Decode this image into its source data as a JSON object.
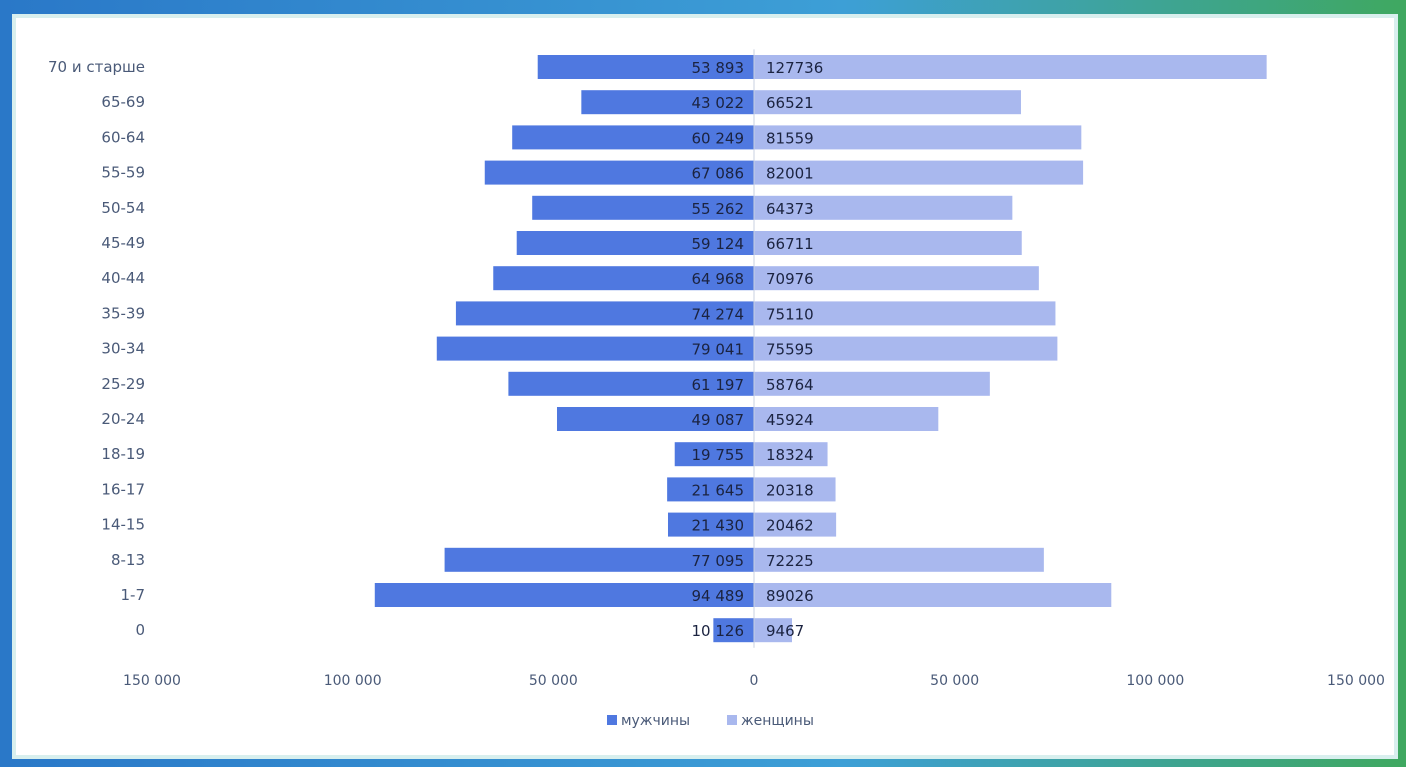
{
  "chart_data": {
    "type": "bar",
    "orientation": "horizontal",
    "categories": [
      "70 и старше",
      "65-69",
      "60-64",
      "55-59",
      "50-54",
      "45-49",
      "40-44",
      "35-39",
      "30-34",
      "25-29",
      "20-24",
      "18-19",
      "16-17",
      "14-15",
      "8-13",
      "1-7",
      "0"
    ],
    "series": [
      {
        "name": "мужчины",
        "color": "#4f78e0",
        "values": [
          53893,
          43022,
          60249,
          67086,
          55262,
          59124,
          64968,
          74274,
          79041,
          61197,
          49087,
          19755,
          21645,
          21430,
          77095,
          94489,
          10126
        ],
        "labels": [
          "53 893",
          "43 022",
          "60 249",
          "67 086",
          "55 262",
          "59 124",
          "64 968",
          "74 274",
          "79 041",
          "61 197",
          "49 087",
          "19 755",
          "21 645",
          "21 430",
          "77 095",
          "94 489",
          "10 126"
        ]
      },
      {
        "name": "женщины",
        "color": "#a9b8ee",
        "values": [
          127736,
          66521,
          81559,
          82001,
          64373,
          66711,
          70976,
          75110,
          75595,
          58764,
          45924,
          18324,
          20318,
          20462,
          72225,
          89026,
          9467
        ],
        "labels": [
          "127736",
          "66521",
          "81559",
          "82001",
          "64373",
          "66711",
          "70976",
          "75110",
          "75595",
          "58764",
          "45924",
          "18324",
          "20318",
          "20462",
          "72225",
          "89026",
          "9467"
        ]
      }
    ],
    "xticks": [
      "150 000",
      "100 000",
      "50 000",
      "0",
      "50 000",
      "100 000",
      "150 000"
    ],
    "xlim": [
      -150000,
      150000
    ],
    "legend_position": "bottom",
    "grid": false,
    "title": "",
    "xlabel": "",
    "ylabel": ""
  }
}
